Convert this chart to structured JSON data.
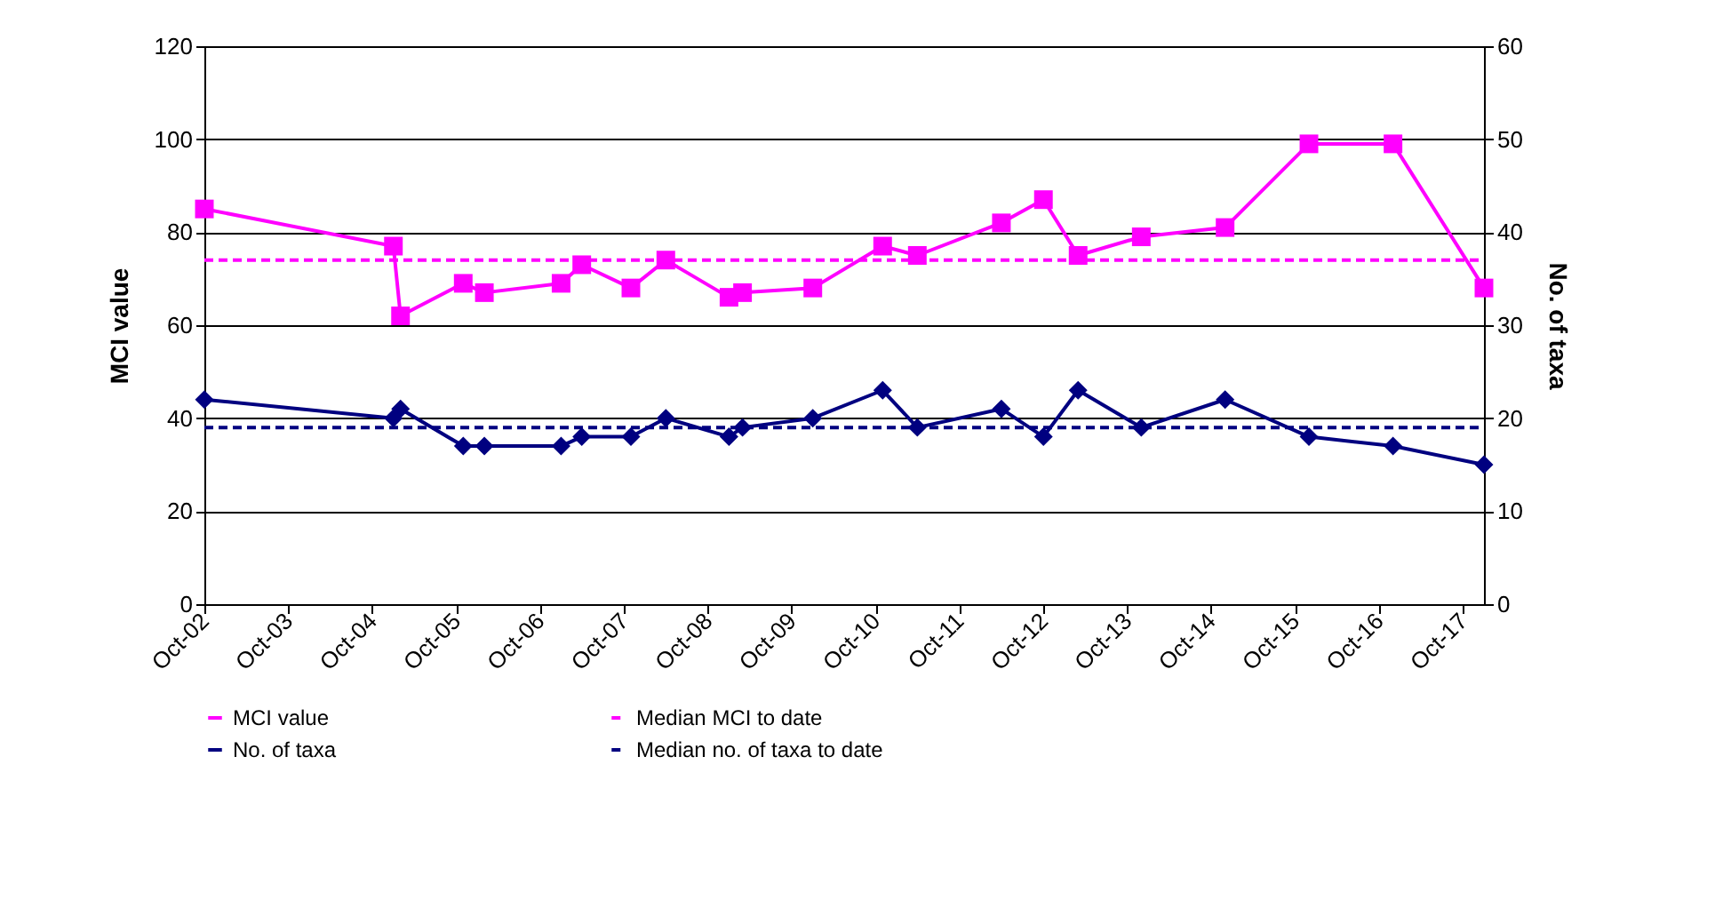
{
  "chart_data": {
    "type": "line",
    "ylabel": "MCI value",
    "y2label": "No. of taxa",
    "ylim": [
      0,
      120
    ],
    "yticks": [
      0,
      20,
      40,
      60,
      80,
      100,
      120
    ],
    "y2lim": [
      0,
      60
    ],
    "y2ticks": [
      0,
      10,
      20,
      30,
      40,
      50,
      60
    ],
    "xlim": [
      "2002-10",
      "2018-01"
    ],
    "xticks": [
      {
        "value": "2002-10",
        "label": "Oct-02"
      },
      {
        "value": "2003-10",
        "label": "Oct-03"
      },
      {
        "value": "2004-10",
        "label": "Oct-04"
      },
      {
        "value": "2005-10",
        "label": "Oct-05"
      },
      {
        "value": "2006-10",
        "label": "Oct-06"
      },
      {
        "value": "2007-10",
        "label": "Oct-07"
      },
      {
        "value": "2008-10",
        "label": "Oct-08"
      },
      {
        "value": "2009-10",
        "label": "Oct-09"
      },
      {
        "value": "2010-10",
        "label": "Oct-10"
      },
      {
        "value": "2011-10",
        "label": "Oct-11"
      },
      {
        "value": "2012-10",
        "label": "Oct-12"
      },
      {
        "value": "2013-10",
        "label": "Oct-13"
      },
      {
        "value": "2014-10",
        "label": "Oct-14"
      },
      {
        "value": "2015-10",
        "label": "Oct-15"
      },
      {
        "value": "2016-10",
        "label": "Oct-16"
      },
      {
        "value": "2017-10",
        "label": "Oct-17"
      }
    ],
    "grid": "y",
    "legend": "bottom",
    "line_style": "solid",
    "series": [
      {
        "name": "MCI value",
        "color": "#ff00ff",
        "marker": "square",
        "x": [
          "2002-10",
          "2005-01",
          "2005-02",
          "2005-11",
          "2006-02",
          "2007-01",
          "2007-04",
          "2007-11",
          "2008-04",
          "2009-01",
          "2009-03",
          "2010-01",
          "2010-11",
          "2011-04",
          "2012-04",
          "2012-10",
          "2013-03",
          "2013-12",
          "2014-12",
          "2015-12",
          "2016-12",
          "2018-01"
        ],
        "values": [
          85,
          77,
          62,
          69,
          67,
          69,
          73,
          68,
          74,
          66,
          67,
          68,
          77,
          75,
          82,
          87,
          75,
          79,
          81,
          99,
          99,
          68
        ]
      },
      {
        "name": "Median MCI to date",
        "color": "#ff00ff",
        "marker": "none",
        "line_style": "dashed",
        "x": [
          "2002-10",
          "2018-01"
        ],
        "values": [
          74,
          74
        ]
      },
      {
        "name": "No. of taxa",
        "color": "#000080",
        "marker": "diamond",
        "axis": "y2",
        "x": [
          "2002-10",
          "2005-01",
          "2005-02",
          "2005-11",
          "2006-02",
          "2007-01",
          "2007-04",
          "2007-11",
          "2008-04",
          "2009-01",
          "2009-03",
          "2010-01",
          "2010-11",
          "2011-04",
          "2012-04",
          "2012-10",
          "2013-03",
          "2013-12",
          "2014-12",
          "2015-12",
          "2016-12",
          "2018-01"
        ],
        "values": [
          22,
          20,
          21,
          17,
          17,
          17,
          18,
          18,
          20,
          18,
          19,
          20,
          23,
          19,
          21,
          18,
          23,
          19,
          22,
          18,
          17,
          15
        ]
      },
      {
        "name": "Median no. of taxa to date",
        "color": "#000080",
        "marker": "none",
        "line_style": "dashed",
        "axis": "y2",
        "x": [
          "2002-10",
          "2018-01"
        ],
        "values": [
          19,
          19
        ]
      }
    ]
  }
}
